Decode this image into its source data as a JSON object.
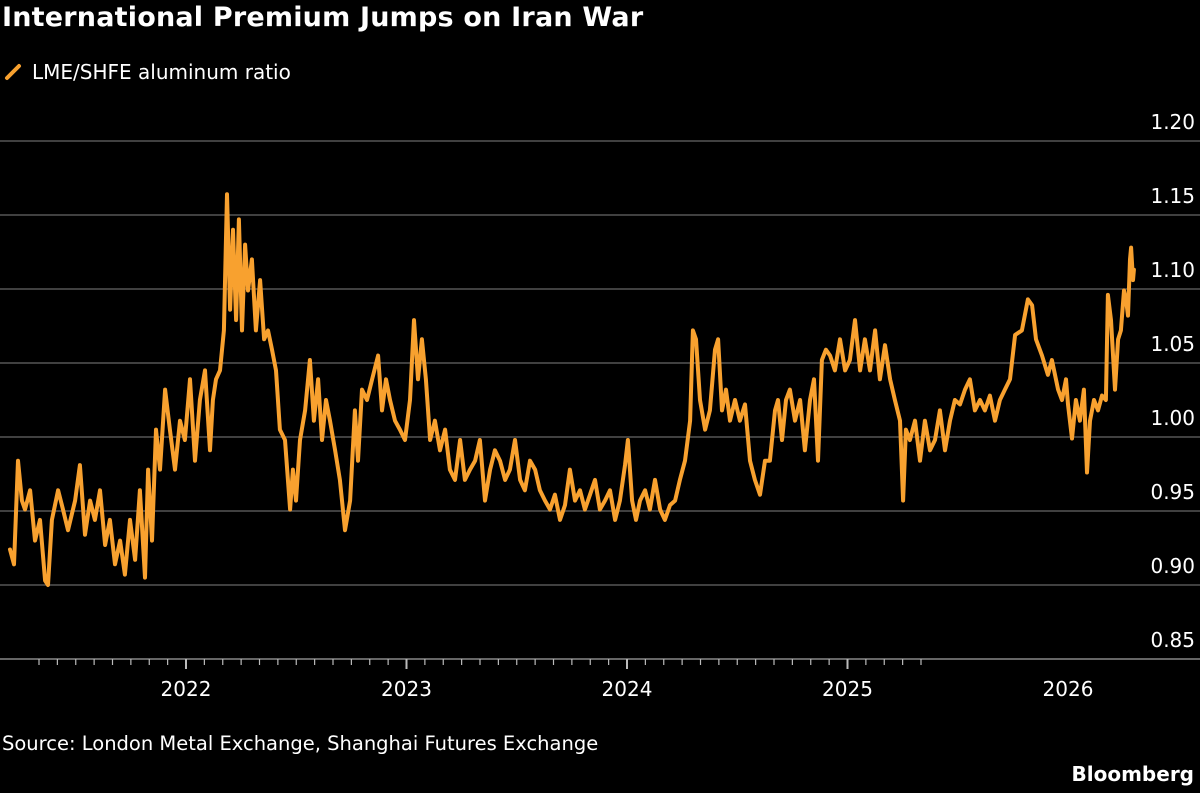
{
  "title": "International Premium Jumps on Iran War",
  "source": "Source: London Metal Exchange, Shanghai Futures Exchange",
  "brand": "Bloomberg",
  "colors": {
    "series": "#f8a12f",
    "background": "#000000",
    "grid": "#555555",
    "text": "#ffffff"
  },
  "chart_data": {
    "type": "line",
    "title": "International Premium Jumps on Iran War",
    "xlabel": "",
    "ylabel": "",
    "ylim": [
      0.85,
      1.2
    ],
    "yticks": [
      "0.85",
      "0.90",
      "0.95",
      "1.00",
      "1.05",
      "1.10",
      "1.15",
      "1.20"
    ],
    "xticks": [
      "2022",
      "2023",
      "2024",
      "2025",
      "2026"
    ],
    "x_unit": "year",
    "grid": "horizontal",
    "legend": "top-left",
    "y_axis_side": "right",
    "series": [
      {
        "name": "LME/SHFE aluminum ratio",
        "points": [
          [
            2021.202,
            0.924
          ],
          [
            2021.22,
            0.914
          ],
          [
            2021.238,
            0.984
          ],
          [
            2021.256,
            0.957
          ],
          [
            2021.27,
            0.951
          ],
          [
            2021.293,
            0.964
          ],
          [
            2021.315,
            0.93
          ],
          [
            2021.338,
            0.944
          ],
          [
            2021.361,
            0.903
          ],
          [
            2021.374,
            0.9
          ],
          [
            2021.392,
            0.944
          ],
          [
            2021.42,
            0.964
          ],
          [
            2021.442,
            0.951
          ],
          [
            2021.465,
            0.937
          ],
          [
            2021.497,
            0.957
          ],
          [
            2021.519,
            0.981
          ],
          [
            2021.542,
            0.934
          ],
          [
            2021.565,
            0.957
          ],
          [
            2021.587,
            0.944
          ],
          [
            2021.61,
            0.964
          ],
          [
            2021.633,
            0.927
          ],
          [
            2021.655,
            0.944
          ],
          [
            2021.678,
            0.914
          ],
          [
            2021.701,
            0.93
          ],
          [
            2021.723,
            0.907
          ],
          [
            2021.746,
            0.944
          ],
          [
            2021.769,
            0.917
          ],
          [
            2021.791,
            0.964
          ],
          [
            2021.814,
            0.905
          ],
          [
            2021.828,
            0.978
          ],
          [
            2021.846,
            0.93
          ],
          [
            2021.864,
            1.005
          ],
          [
            2021.882,
            0.978
          ],
          [
            2021.905,
            1.032
          ],
          [
            2021.927,
            1.005
          ],
          [
            2021.95,
            0.978
          ],
          [
            2021.973,
            1.011
          ],
          [
            2021.995,
            0.998
          ],
          [
            2022.018,
            1.039
          ],
          [
            2022.041,
            0.984
          ],
          [
            2022.063,
            1.025
          ],
          [
            2022.086,
            1.045
          ],
          [
            2022.109,
            0.991
          ],
          [
            2022.122,
            1.025
          ],
          [
            2022.136,
            1.039
          ],
          [
            2022.154,
            1.045
          ],
          [
            2022.172,
            1.072
          ],
          [
            2022.186,
            1.164
          ],
          [
            2022.2,
            1.086
          ],
          [
            2022.213,
            1.14
          ],
          [
            2022.227,
            1.079
          ],
          [
            2022.24,
            1.147
          ],
          [
            2022.254,
            1.072
          ],
          [
            2022.268,
            1.13
          ],
          [
            2022.281,
            1.099
          ],
          [
            2022.299,
            1.12
          ],
          [
            2022.317,
            1.072
          ],
          [
            2022.336,
            1.106
          ],
          [
            2022.354,
            1.066
          ],
          [
            2022.372,
            1.072
          ],
          [
            2022.39,
            1.059
          ],
          [
            2022.408,
            1.045
          ],
          [
            2022.426,
            1.005
          ],
          [
            2022.449,
            0.998
          ],
          [
            2022.472,
            0.951
          ],
          [
            2022.485,
            0.978
          ],
          [
            2022.499,
            0.957
          ],
          [
            2022.517,
            0.998
          ],
          [
            2022.54,
            1.018
          ],
          [
            2022.562,
            1.052
          ],
          [
            2022.58,
            1.011
          ],
          [
            2022.599,
            1.039
          ],
          [
            2022.617,
            0.998
          ],
          [
            2022.635,
            1.025
          ],
          [
            2022.653,
            1.011
          ],
          [
            2022.676,
            0.991
          ],
          [
            2022.698,
            0.971
          ],
          [
            2022.721,
            0.937
          ],
          [
            2022.744,
            0.957
          ],
          [
            2022.766,
            1.018
          ],
          [
            2022.78,
            0.984
          ],
          [
            2022.798,
            1.032
          ],
          [
            2022.821,
            1.025
          ],
          [
            2022.844,
            1.039
          ],
          [
            2022.871,
            1.055
          ],
          [
            2022.889,
            1.018
          ],
          [
            2022.907,
            1.039
          ],
          [
            2022.925,
            1.025
          ],
          [
            2022.948,
            1.011
          ],
          [
            2022.97,
            1.005
          ],
          [
            2022.993,
            0.998
          ],
          [
            2023.016,
            1.025
          ],
          [
            2023.034,
            1.079
          ],
          [
            2023.052,
            1.039
          ],
          [
            2023.07,
            1.066
          ],
          [
            2023.088,
            1.039
          ],
          [
            2023.107,
            0.998
          ],
          [
            2023.129,
            1.011
          ],
          [
            2023.152,
            0.991
          ],
          [
            2023.175,
            1.005
          ],
          [
            2023.197,
            0.978
          ],
          [
            2023.22,
            0.971
          ],
          [
            2023.243,
            0.998
          ],
          [
            2023.265,
            0.971
          ],
          [
            2023.288,
            0.978
          ],
          [
            2023.311,
            0.984
          ],
          [
            2023.333,
            0.998
          ],
          [
            2023.356,
            0.957
          ],
          [
            2023.379,
            0.978
          ],
          [
            2023.401,
            0.991
          ],
          [
            2023.424,
            0.984
          ],
          [
            2023.447,
            0.971
          ],
          [
            2023.469,
            0.978
          ],
          [
            2023.492,
            0.998
          ],
          [
            2023.515,
            0.971
          ],
          [
            2023.537,
            0.964
          ],
          [
            2023.56,
            0.984
          ],
          [
            2023.583,
            0.978
          ],
          [
            2023.605,
            0.964
          ],
          [
            2023.628,
            0.957
          ],
          [
            2023.651,
            0.951
          ],
          [
            2023.673,
            0.961
          ],
          [
            2023.696,
            0.944
          ],
          [
            2023.719,
            0.954
          ],
          [
            2023.741,
            0.978
          ],
          [
            2023.764,
            0.957
          ],
          [
            2023.787,
            0.964
          ],
          [
            2023.809,
            0.951
          ],
          [
            2023.832,
            0.961
          ],
          [
            2023.855,
            0.971
          ],
          [
            2023.877,
            0.951
          ],
          [
            2023.9,
            0.957
          ],
          [
            2023.923,
            0.964
          ],
          [
            2023.946,
            0.944
          ],
          [
            2023.968,
            0.957
          ],
          [
            2023.991,
            0.981
          ],
          [
            2024.004,
            0.998
          ],
          [
            2024.023,
            0.957
          ],
          [
            2024.041,
            0.944
          ],
          [
            2024.059,
            0.957
          ],
          [
            2024.082,
            0.964
          ],
          [
            2024.104,
            0.951
          ],
          [
            2024.127,
            0.971
          ],
          [
            2024.15,
            0.951
          ],
          [
            2024.172,
            0.944
          ],
          [
            2024.195,
            0.954
          ],
          [
            2024.218,
            0.957
          ],
          [
            2024.24,
            0.971
          ],
          [
            2024.263,
            0.984
          ],
          [
            2024.286,
            1.011
          ],
          [
            2024.299,
            1.072
          ],
          [
            2024.313,
            1.066
          ],
          [
            2024.331,
            1.025
          ],
          [
            2024.354,
            1.005
          ],
          [
            2024.376,
            1.018
          ],
          [
            2024.399,
            1.059
          ],
          [
            2024.413,
            1.066
          ],
          [
            2024.431,
            1.018
          ],
          [
            2024.449,
            1.032
          ],
          [
            2024.467,
            1.011
          ],
          [
            2024.49,
            1.025
          ],
          [
            2024.512,
            1.011
          ],
          [
            2024.535,
            1.022
          ],
          [
            2024.558,
            0.984
          ],
          [
            2024.58,
            0.971
          ],
          [
            2024.603,
            0.961
          ],
          [
            2024.626,
            0.984
          ],
          [
            2024.648,
            0.984
          ],
          [
            2024.671,
            1.018
          ],
          [
            2024.685,
            1.025
          ],
          [
            2024.703,
            0.998
          ],
          [
            2024.721,
            1.025
          ],
          [
            2024.739,
            1.032
          ],
          [
            2024.762,
            1.011
          ],
          [
            2024.785,
            1.025
          ],
          [
            2024.807,
            0.991
          ],
          [
            2024.83,
            1.025
          ],
          [
            2024.848,
            1.039
          ],
          [
            2024.866,
            0.984
          ],
          [
            2024.884,
            1.052
          ],
          [
            2024.902,
            1.059
          ],
          [
            2024.921,
            1.055
          ],
          [
            2024.943,
            1.045
          ],
          [
            2024.966,
            1.066
          ],
          [
            2024.989,
            1.045
          ],
          [
            2025.011,
            1.052
          ],
          [
            2025.034,
            1.079
          ],
          [
            2025.057,
            1.045
          ],
          [
            2025.079,
            1.066
          ],
          [
            2025.102,
            1.045
          ],
          [
            2025.125,
            1.072
          ],
          [
            2025.147,
            1.039
          ],
          [
            2025.17,
            1.062
          ],
          [
            2025.193,
            1.039
          ],
          [
            2025.215,
            1.025
          ],
          [
            2025.238,
            1.011
          ],
          [
            2025.252,
            0.957
          ],
          [
            2025.265,
            1.005
          ],
          [
            2025.283,
            0.998
          ],
          [
            2025.306,
            1.011
          ],
          [
            2025.329,
            0.984
          ],
          [
            2025.351,
            1.011
          ],
          [
            2025.374,
            0.991
          ],
          [
            2025.397,
            0.998
          ],
          [
            2025.419,
            1.018
          ],
          [
            2025.442,
            0.991
          ],
          [
            2025.465,
            1.011
          ],
          [
            2025.487,
            1.025
          ],
          [
            2025.51,
            1.022
          ],
          [
            2025.533,
            1.032
          ],
          [
            2025.555,
            1.039
          ],
          [
            2025.578,
            1.018
          ],
          [
            2025.601,
            1.025
          ],
          [
            2025.623,
            1.018
          ],
          [
            2025.646,
            1.028
          ],
          [
            2025.669,
            1.011
          ],
          [
            2025.691,
            1.025
          ],
          [
            2025.714,
            1.032
          ],
          [
            2025.737,
            1.039
          ],
          [
            2025.76,
            1.069
          ],
          [
            2025.791,
            1.072
          ],
          [
            2025.818,
            1.093
          ],
          [
            2025.837,
            1.089
          ],
          [
            2025.855,
            1.066
          ],
          [
            2025.882,
            1.055
          ],
          [
            2025.909,
            1.042
          ],
          [
            2025.927,
            1.052
          ],
          [
            2025.955,
            1.032
          ],
          [
            2025.973,
            1.025
          ],
          [
            2025.991,
            1.039
          ],
          [
            2026.0,
            1.022
          ],
          [
            2026.018,
            0.999
          ],
          [
            2026.036,
            1.025
          ],
          [
            2026.054,
            1.011
          ],
          [
            2026.072,
            1.032
          ],
          [
            2026.086,
            0.976
          ],
          [
            2026.1,
            1.011
          ],
          [
            2026.118,
            1.025
          ],
          [
            2026.136,
            1.018
          ],
          [
            2026.154,
            1.028
          ],
          [
            2026.172,
            1.025
          ],
          [
            2026.181,
            1.096
          ],
          [
            2026.195,
            1.079
          ],
          [
            2026.213,
            1.032
          ],
          [
            2026.227,
            1.066
          ],
          [
            2026.24,
            1.072
          ],
          [
            2026.254,
            1.099
          ],
          [
            2026.263,
            1.093
          ],
          [
            2026.272,
            1.082
          ],
          [
            2026.281,
            1.12
          ],
          [
            2026.286,
            1.128
          ],
          [
            2026.295,
            1.106
          ],
          [
            2026.299,
            1.113
          ]
        ]
      }
    ]
  }
}
